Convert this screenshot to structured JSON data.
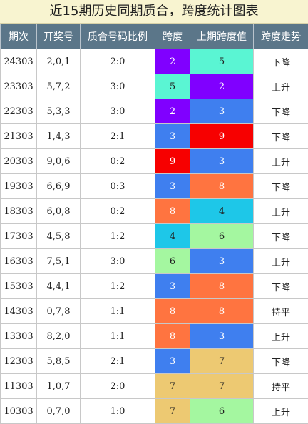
{
  "title": "近15期历史同期质合，跨度统计图表",
  "headers": [
    "期次",
    "开奖号",
    "质合号码比例",
    "跨度",
    "上期跨度值",
    "跨度走势"
  ],
  "rows": [
    {
      "period": "24303",
      "numbers": "2,0,1",
      "ratio": "2:0",
      "span": "2",
      "span_color": "#8000ff",
      "prev": "5",
      "prev_color": "#5af5d3",
      "trend": "下降"
    },
    {
      "period": "23303",
      "numbers": "5,7,2",
      "ratio": "3:0",
      "span": "5",
      "span_color": "#5af5d3",
      "prev": "2",
      "prev_color": "#8000ff",
      "trend": "上升"
    },
    {
      "period": "22303",
      "numbers": "5,3,3",
      "ratio": "3:0",
      "span": "2",
      "span_color": "#8000ff",
      "prev": "3",
      "prev_color": "#3f7fef",
      "trend": "下降"
    },
    {
      "period": "21303",
      "numbers": "1,4,3",
      "ratio": "2:1",
      "span": "3",
      "span_color": "#3f7fef",
      "prev": "9",
      "prev_color": "#f70000",
      "trend": "下降"
    },
    {
      "period": "20303",
      "numbers": "9,0,6",
      "ratio": "0:2",
      "span": "9",
      "span_color": "#f70000",
      "prev": "3",
      "prev_color": "#3f7fef",
      "trend": "上升"
    },
    {
      "period": "19303",
      "numbers": "6,6,9",
      "ratio": "0:3",
      "span": "3",
      "span_color": "#3f7fef",
      "prev": "8",
      "prev_color": "#ff7440",
      "trend": "下降"
    },
    {
      "period": "18303",
      "numbers": "6,0,8",
      "ratio": "0:2",
      "span": "8",
      "span_color": "#ff7440",
      "prev": "4",
      "prev_color": "#1ec7e8",
      "trend": "上升"
    },
    {
      "period": "17303",
      "numbers": "4,5,8",
      "ratio": "1:2",
      "span": "4",
      "span_color": "#1ec7e8",
      "prev": "6",
      "prev_color": "#a4f7a0",
      "trend": "下降"
    },
    {
      "period": "16303",
      "numbers": "7,5,1",
      "ratio": "3:0",
      "span": "6",
      "span_color": "#a4f7a0",
      "prev": "3",
      "prev_color": "#3f7fef",
      "trend": "上升"
    },
    {
      "period": "15303",
      "numbers": "4,4,1",
      "ratio": "1:2",
      "span": "3",
      "span_color": "#3f7fef",
      "prev": "8",
      "prev_color": "#ff7440",
      "trend": "下降"
    },
    {
      "period": "14303",
      "numbers": "0,7,8",
      "ratio": "1:1",
      "span": "8",
      "span_color": "#ff7440",
      "prev": "8",
      "prev_color": "#ff7440",
      "trend": "持平"
    },
    {
      "period": "13303",
      "numbers": "8,2,0",
      "ratio": "1:1",
      "span": "8",
      "span_color": "#ff7440",
      "prev": "3",
      "prev_color": "#3f7fef",
      "trend": "上升"
    },
    {
      "period": "12303",
      "numbers": "5,8,5",
      "ratio": "2:1",
      "span": "3",
      "span_color": "#3f7fef",
      "prev": "7",
      "prev_color": "#edc972",
      "trend": "下降"
    },
    {
      "period": "11303",
      "numbers": "1,0,7",
      "ratio": "2:0",
      "span": "7",
      "span_color": "#edc972",
      "prev": "7",
      "prev_color": "#edc972",
      "trend": "持平"
    },
    {
      "period": "10303",
      "numbers": "0,7,0",
      "ratio": "1:0",
      "span": "7",
      "span_color": "#edc972",
      "prev": "6",
      "prev_color": "#a4f7a0",
      "trend": "上升"
    }
  ]
}
